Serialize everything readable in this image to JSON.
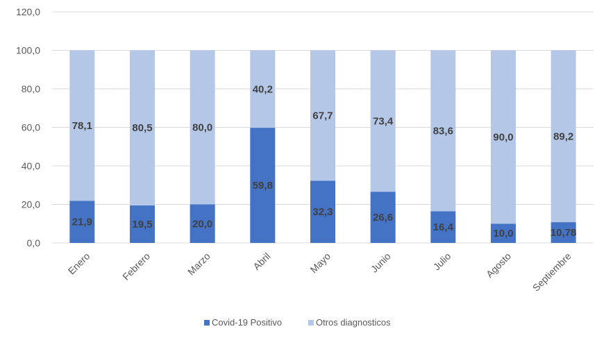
{
  "chart_data": {
    "type": "bar",
    "stacked": true,
    "categories": [
      "Enero",
      "Febrero",
      "Marzo",
      "Abril",
      "Mayo",
      "Junio",
      "Julio",
      "Agosto",
      "Septiembre"
    ],
    "series": [
      {
        "name": "Covid-19 Positivo",
        "color": "#4472c4",
        "values": [
          21.9,
          19.5,
          20.0,
          59.8,
          32.3,
          26.6,
          16.4,
          10.0,
          10.78
        ],
        "labels": [
          "21,9",
          "19,5",
          "20,0",
          "59,8",
          "32,3",
          "26,6",
          "16,4",
          "10,0",
          "10,78"
        ]
      },
      {
        "name": "Otros diagnosticos",
        "color": "#b4c7e7",
        "values": [
          78.1,
          80.5,
          80.0,
          40.2,
          67.7,
          73.4,
          83.6,
          90.0,
          89.2
        ],
        "labels": [
          "78,1",
          "80,5",
          "80,0",
          "40,2",
          "67,7",
          "73,4",
          "83,6",
          "90,0",
          "89,2"
        ]
      }
    ],
    "ylim": [
      0,
      120
    ],
    "yticks": [
      0,
      20,
      40,
      60,
      80,
      100,
      120
    ],
    "ytick_labels": [
      "0,0",
      "20,0",
      "40,0",
      "60,0",
      "80,0",
      "100,0",
      "120,0"
    ],
    "grid": true,
    "legend_position": "bottom"
  }
}
